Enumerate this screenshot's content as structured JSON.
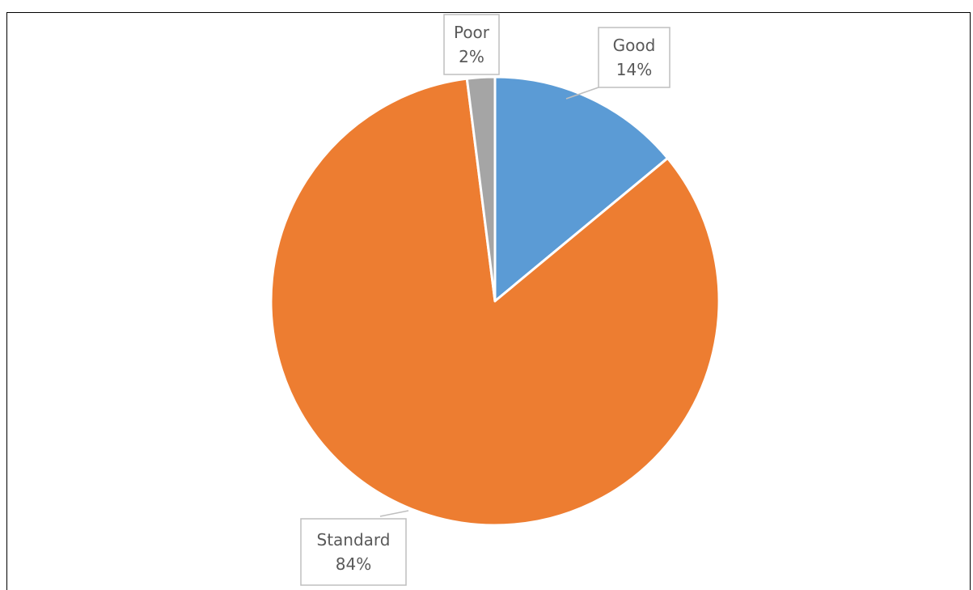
{
  "caption": {
    "text": ""
  },
  "chart_data": {
    "type": "pie",
    "title": "",
    "categories": [
      "Good",
      "Standard",
      "Poor"
    ],
    "values": [
      14,
      84,
      2
    ],
    "value_labels": [
      "14%",
      "84%",
      "2%"
    ],
    "colors": [
      "#5B9BD5",
      "#ED7D31",
      "#A5A5A5"
    ],
    "start_angle_deg": 0,
    "direction": "clockwise",
    "legend": "none",
    "data_labels": "category-name-and-percent-callouts"
  }
}
